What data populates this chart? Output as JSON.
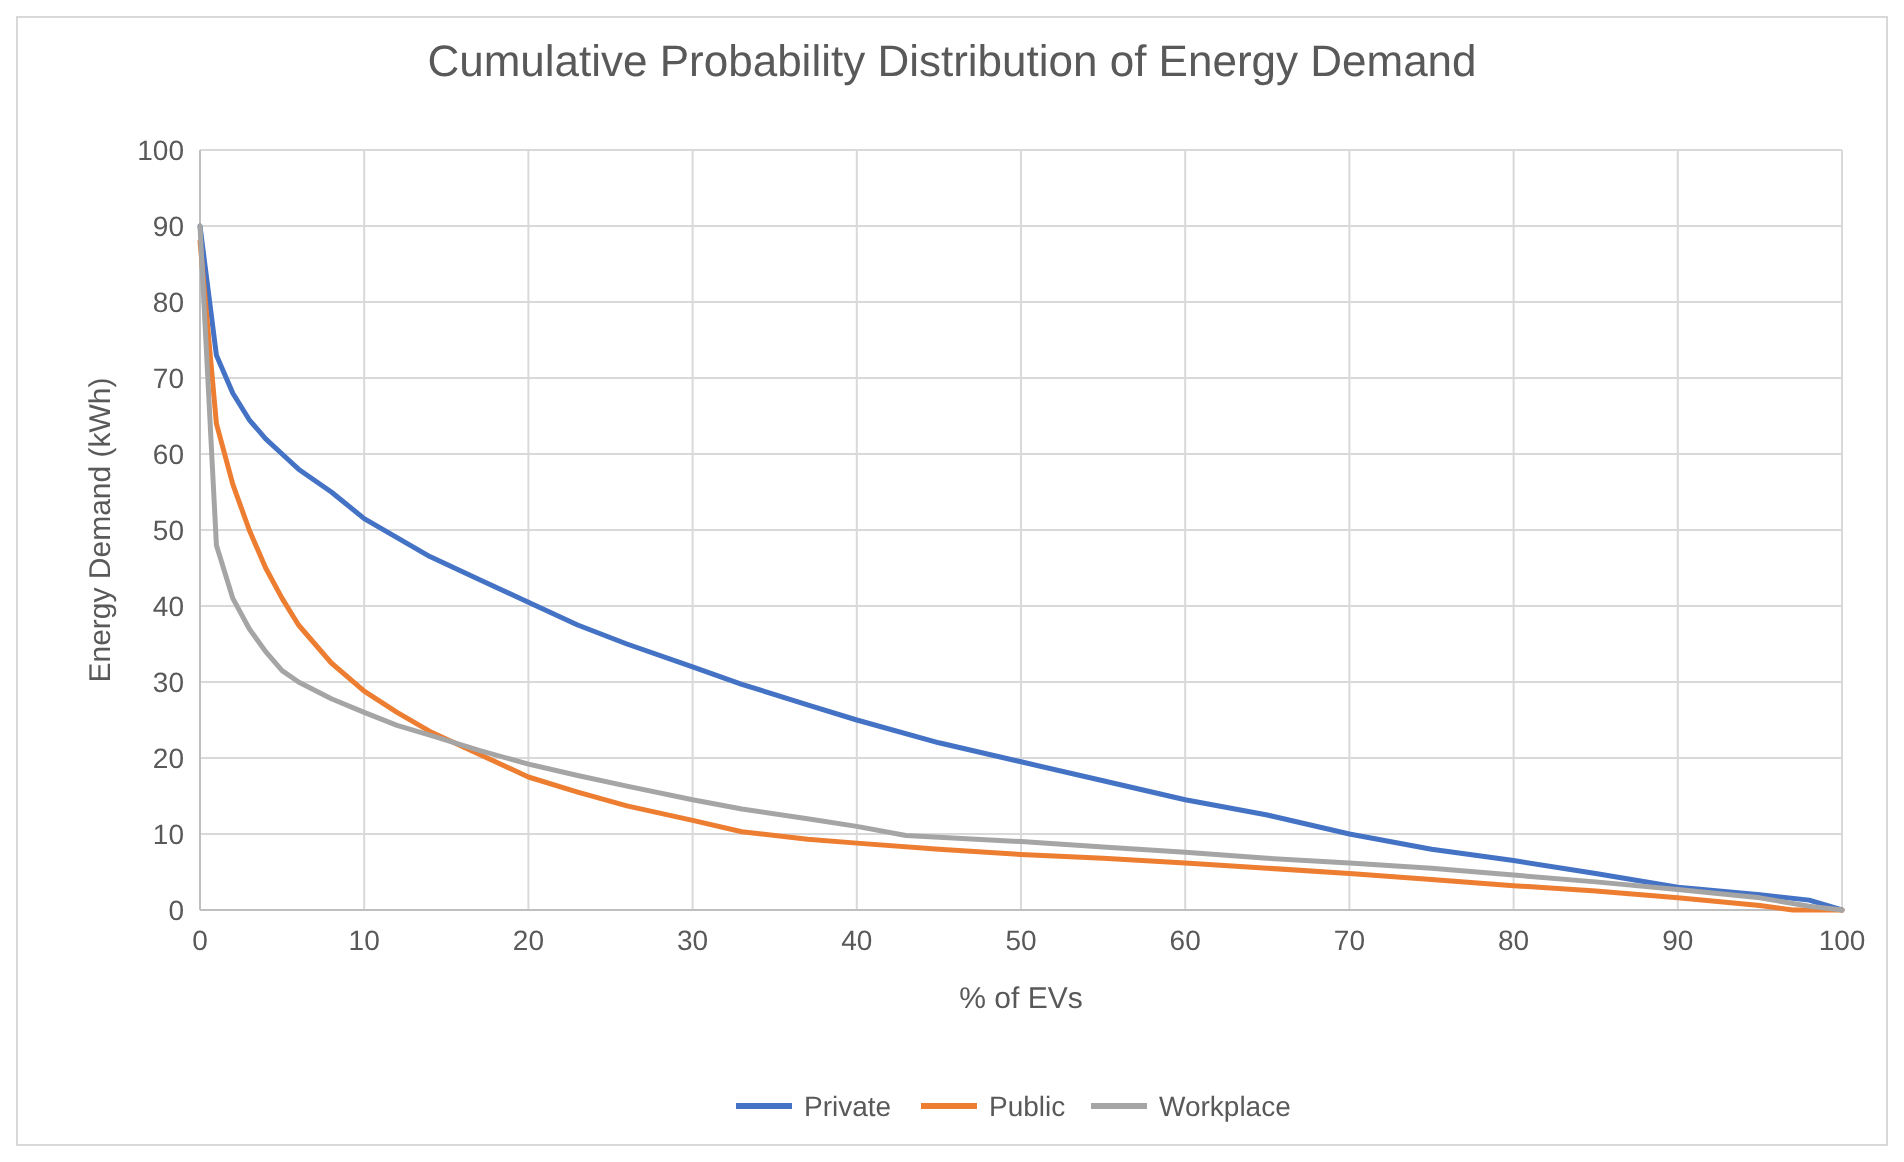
{
  "chart_data": {
    "type": "line",
    "title": "Cumulative Probability Distribution of Energy Demand",
    "xlabel": "% of EVs",
    "ylabel": "Energy Demand (kWh)",
    "xlim": [
      0,
      100
    ],
    "xticks": [
      0,
      10,
      20,
      30,
      40,
      50,
      60,
      70,
      80,
      90,
      100
    ],
    "ylim": [
      0,
      100
    ],
    "yticks": [
      0,
      10,
      20,
      30,
      40,
      50,
      60,
      70,
      80,
      90,
      100
    ],
    "grid": true,
    "legend": "bottom",
    "marker": "none",
    "line_style": "solid",
    "series": [
      {
        "name": "Private",
        "color": "#4472c4",
        "x": [
          0,
          1,
          2,
          3,
          4,
          5,
          6,
          8,
          10,
          12,
          14,
          17,
          20,
          23,
          26,
          30,
          33,
          37,
          40,
          45,
          50,
          55,
          60,
          65,
          70,
          75,
          80,
          85,
          90,
          95,
          98,
          100
        ],
        "values": [
          90,
          73,
          68,
          64.5,
          62,
          60,
          58,
          55,
          51.5,
          49,
          46.5,
          43.5,
          40.5,
          37.5,
          35,
          32,
          29.7,
          27,
          25,
          22,
          19.5,
          17,
          14.5,
          12.5,
          10,
          8,
          6.5,
          4.8,
          3,
          2,
          1.3,
          0
        ]
      },
      {
        "name": "Public",
        "color": "#ed7d31",
        "x": [
          0,
          1,
          2,
          3,
          4,
          5,
          6,
          8,
          10,
          12,
          14,
          17,
          20,
          23,
          26,
          30,
          33,
          37,
          40,
          45,
          50,
          55,
          60,
          65,
          70,
          75,
          80,
          85,
          90,
          95,
          97,
          100
        ],
        "values": [
          88,
          64,
          56,
          50,
          45,
          41,
          37.5,
          32.5,
          28.8,
          26,
          23.5,
          20.5,
          17.5,
          15.5,
          13.7,
          11.8,
          10.3,
          9.3,
          8.8,
          8,
          7.3,
          6.8,
          6.2,
          5.5,
          4.8,
          4,
          3.2,
          2.5,
          1.6,
          0.6,
          0,
          0
        ]
      },
      {
        "name": "Workplace",
        "color": "#a5a5a5",
        "x": [
          0,
          1,
          2,
          3,
          4,
          5,
          6,
          8,
          10,
          12,
          14,
          17,
          20,
          23,
          26,
          30,
          33,
          37,
          40,
          43,
          50,
          55,
          60,
          65,
          70,
          75,
          80,
          85,
          90,
          95,
          98,
          100
        ],
        "values": [
          90,
          48,
          41,
          37,
          34,
          31.5,
          30,
          27.8,
          26,
          24.3,
          23,
          21,
          19.2,
          17.7,
          16.3,
          14.5,
          13.3,
          12,
          11,
          9.8,
          9,
          8.3,
          7.6,
          6.8,
          6.2,
          5.5,
          4.6,
          3.7,
          2.7,
          1.6,
          0.5,
          0
        ]
      }
    ]
  }
}
